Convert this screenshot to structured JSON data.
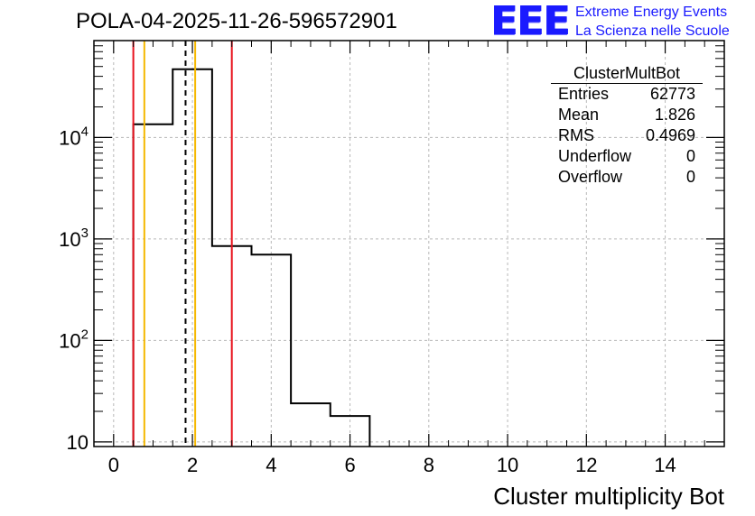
{
  "title": "POLA-04-2025-11-26-596572901",
  "logo": {
    "mark": "EEE",
    "line1": "Extreme Energy Events",
    "line2": "La Scienza nelle Scuole",
    "color": "#1a1aff"
  },
  "stats": {
    "name": "ClusterMultBot",
    "rows": [
      {
        "label": "Entries",
        "value": "62773"
      },
      {
        "label": "Mean",
        "value": "1.826"
      },
      {
        "label": "RMS",
        "value": "0.4969"
      },
      {
        "label": "Underflow",
        "value": "0"
      },
      {
        "label": "Overflow",
        "value": "0"
      }
    ]
  },
  "chart_data": {
    "type": "histogram",
    "title": "POLA-04-2025-11-26-596572901",
    "xlabel": "Cluster multiplicity Bot",
    "ylabel": "",
    "yscale": "log",
    "xlim": [
      -0.5,
      15.5
    ],
    "ylim": [
      9,
      90000
    ],
    "grid": true,
    "xticks": [
      0,
      2,
      4,
      6,
      8,
      10,
      12,
      14
    ],
    "yticks": [
      {
        "value": 10,
        "base": "10",
        "exp": ""
      },
      {
        "value": 100,
        "base": "10",
        "exp": "2"
      },
      {
        "value": 1000,
        "base": "10",
        "exp": "3"
      },
      {
        "value": 10000,
        "base": "10",
        "exp": "4"
      }
    ],
    "bins": [
      {
        "low": 0.5,
        "high": 1.5,
        "count": 13500
      },
      {
        "low": 1.5,
        "high": 2.5,
        "count": 47000
      },
      {
        "low": 2.5,
        "high": 3.5,
        "count": 850
      },
      {
        "low": 3.5,
        "high": 4.5,
        "count": 700
      },
      {
        "low": 4.5,
        "high": 5.5,
        "count": 24
      },
      {
        "low": 5.5,
        "high": 6.5,
        "count": 18
      }
    ],
    "vlines": [
      {
        "x": 0.5,
        "color": "#e8121d",
        "style": "solid"
      },
      {
        "x": 3.0,
        "color": "#e8121d",
        "style": "solid"
      },
      {
        "x": 0.78,
        "color": "#f5b800",
        "style": "solid"
      },
      {
        "x": 2.07,
        "color": "#f5b800",
        "style": "solid"
      },
      {
        "x": 1.826,
        "color": "#000000",
        "style": "dashed"
      }
    ]
  }
}
